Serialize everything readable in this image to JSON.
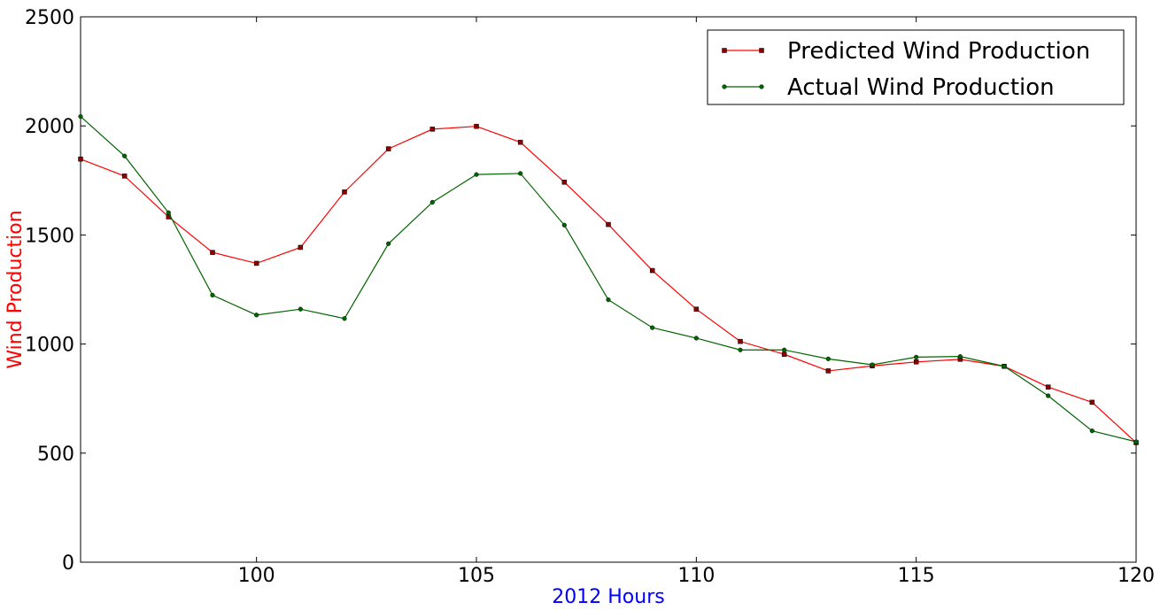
{
  "chart_data": {
    "type": "line",
    "title": "",
    "xlabel": "2012 Hours",
    "ylabel": "Wind Production",
    "xlim": [
      96,
      120
    ],
    "ylim": [
      0,
      2500
    ],
    "x_ticks": [
      100,
      105,
      110,
      115,
      120
    ],
    "y_ticks": [
      0,
      500,
      1000,
      1500,
      2000,
      2500
    ],
    "grid": false,
    "legend_position": "top-right",
    "x": [
      96,
      97,
      98,
      99,
      100,
      101,
      102,
      103,
      104,
      105,
      106,
      107,
      108,
      109,
      110,
      111,
      112,
      113,
      114,
      115,
      116,
      117,
      118,
      119,
      120
    ],
    "series": [
      {
        "name": "Predicted Wind Production",
        "color": "#ff0000",
        "marker_color": "#8b0000",
        "marker": "square",
        "values": [
          1848,
          1770,
          1583,
          1420,
          1370,
          1443,
          1697,
          1895,
          1985,
          1998,
          1925,
          1742,
          1548,
          1337,
          1160,
          1012,
          953,
          877,
          900,
          918,
          930,
          898,
          803,
          733,
          548
        ]
      },
      {
        "name": "Actual Wind Production",
        "color": "#006400",
        "marker_color": "#006400",
        "marker": "circle",
        "values": [
          2043,
          1862,
          1602,
          1224,
          1133,
          1160,
          1117,
          1460,
          1650,
          1777,
          1782,
          1545,
          1203,
          1075,
          1027,
          973,
          973,
          932,
          905,
          940,
          943,
          898,
          763,
          602,
          552
        ]
      }
    ]
  },
  "axis_colors": {
    "xlabel": "#0000ff",
    "ylabel": "#ff0000"
  }
}
